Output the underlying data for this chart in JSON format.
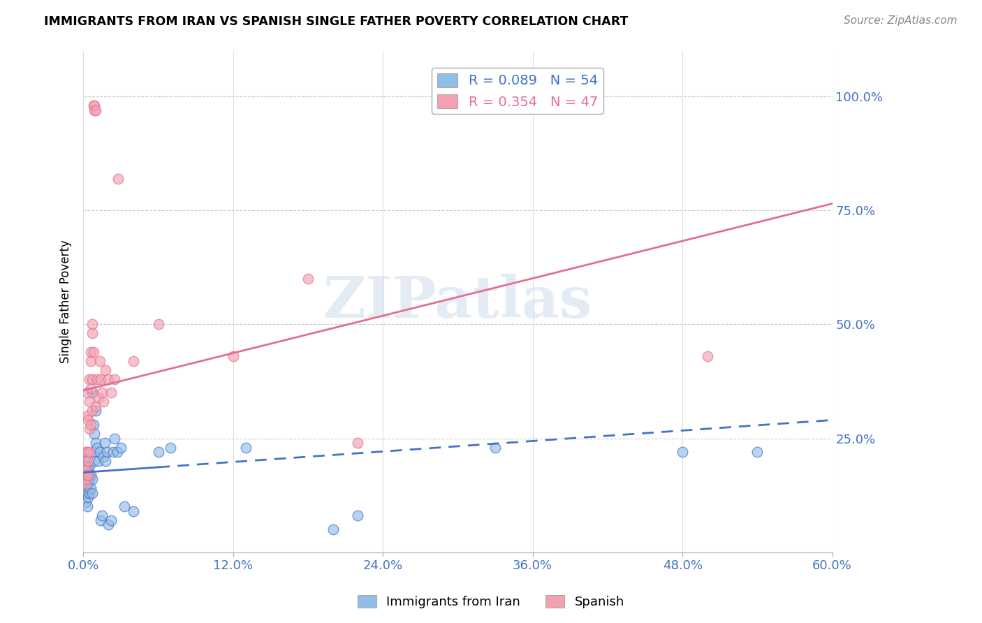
{
  "title": "IMMIGRANTS FROM IRAN VS SPANISH SINGLE FATHER POVERTY CORRELATION CHART",
  "source": "Source: ZipAtlas.com",
  "ylabel": "Single Father Poverty",
  "ytick_labels": [
    "100.0%",
    "75.0%",
    "50.0%",
    "25.0%"
  ],
  "ytick_values": [
    1.0,
    0.75,
    0.5,
    0.25
  ],
  "xtick_values": [
    0.0,
    0.12,
    0.24,
    0.36,
    0.48,
    0.6
  ],
  "xtick_labels": [
    "0.0%",
    "12.0%",
    "24.0%",
    "36.0%",
    "48.0%",
    "60.0%"
  ],
  "xlim": [
    0.0,
    0.6
  ],
  "ylim": [
    0.0,
    1.1
  ],
  "blue_color": "#92bde8",
  "pink_color": "#f4a0b0",
  "trendline_blue_color": "#4472c4",
  "trendline_pink_color": "#e07090",
  "watermark": "ZIPatlas",
  "trendline_blue_x0": 0.0,
  "trendline_blue_y0": 0.175,
  "trendline_blue_x1": 0.6,
  "trendline_blue_y1": 0.29,
  "trendline_blue_solid_end": 0.06,
  "trendline_pink_x0": 0.0,
  "trendline_pink_y0": 0.355,
  "trendline_pink_x1": 0.6,
  "trendline_pink_y1": 0.765,
  "blue_scatter": [
    [
      0.001,
      0.19
    ],
    [
      0.001,
      0.16
    ],
    [
      0.001,
      0.13
    ],
    [
      0.002,
      0.2
    ],
    [
      0.002,
      0.17
    ],
    [
      0.002,
      0.14
    ],
    [
      0.002,
      0.11
    ],
    [
      0.003,
      0.19
    ],
    [
      0.003,
      0.16
    ],
    [
      0.003,
      0.13
    ],
    [
      0.003,
      0.1
    ],
    [
      0.004,
      0.18
    ],
    [
      0.004,
      0.15
    ],
    [
      0.004,
      0.12
    ],
    [
      0.005,
      0.19
    ],
    [
      0.005,
      0.16
    ],
    [
      0.005,
      0.13
    ],
    [
      0.006,
      0.17
    ],
    [
      0.006,
      0.14
    ],
    [
      0.007,
      0.16
    ],
    [
      0.007,
      0.13
    ],
    [
      0.007,
      0.35
    ],
    [
      0.008,
      0.28
    ],
    [
      0.008,
      0.22
    ],
    [
      0.009,
      0.26
    ],
    [
      0.009,
      0.2
    ],
    [
      0.01,
      0.31
    ],
    [
      0.01,
      0.24
    ],
    [
      0.011,
      0.23
    ],
    [
      0.012,
      0.2
    ],
    [
      0.013,
      0.22
    ],
    [
      0.014,
      0.07
    ],
    [
      0.015,
      0.08
    ],
    [
      0.016,
      0.21
    ],
    [
      0.017,
      0.24
    ],
    [
      0.018,
      0.2
    ],
    [
      0.019,
      0.22
    ],
    [
      0.02,
      0.06
    ],
    [
      0.022,
      0.07
    ],
    [
      0.024,
      0.22
    ],
    [
      0.025,
      0.25
    ],
    [
      0.027,
      0.22
    ],
    [
      0.03,
      0.23
    ],
    [
      0.033,
      0.1
    ],
    [
      0.04,
      0.09
    ],
    [
      0.06,
      0.22
    ],
    [
      0.07,
      0.23
    ],
    [
      0.13,
      0.23
    ],
    [
      0.2,
      0.05
    ],
    [
      0.22,
      0.08
    ],
    [
      0.33,
      0.23
    ],
    [
      0.48,
      0.22
    ],
    [
      0.54,
      0.22
    ]
  ],
  "pink_scatter": [
    [
      0.001,
      0.19
    ],
    [
      0.001,
      0.16
    ],
    [
      0.002,
      0.22
    ],
    [
      0.002,
      0.18
    ],
    [
      0.002,
      0.15
    ],
    [
      0.003,
      0.22
    ],
    [
      0.003,
      0.17
    ],
    [
      0.003,
      0.35
    ],
    [
      0.003,
      0.3
    ],
    [
      0.004,
      0.2
    ],
    [
      0.004,
      0.17
    ],
    [
      0.004,
      0.29
    ],
    [
      0.005,
      0.38
    ],
    [
      0.005,
      0.33
    ],
    [
      0.005,
      0.27
    ],
    [
      0.005,
      0.22
    ],
    [
      0.006,
      0.42
    ],
    [
      0.006,
      0.36
    ],
    [
      0.006,
      0.28
    ],
    [
      0.006,
      0.44
    ],
    [
      0.007,
      0.5
    ],
    [
      0.007,
      0.38
    ],
    [
      0.007,
      0.31
    ],
    [
      0.007,
      0.48
    ],
    [
      0.008,
      0.44
    ],
    [
      0.008,
      0.98
    ],
    [
      0.009,
      0.97
    ],
    [
      0.009,
      0.98
    ],
    [
      0.01,
      0.97
    ],
    [
      0.01,
      0.32
    ],
    [
      0.011,
      0.38
    ],
    [
      0.012,
      0.34
    ],
    [
      0.013,
      0.42
    ],
    [
      0.014,
      0.38
    ],
    [
      0.015,
      0.35
    ],
    [
      0.016,
      0.33
    ],
    [
      0.018,
      0.4
    ],
    [
      0.02,
      0.38
    ],
    [
      0.022,
      0.35
    ],
    [
      0.025,
      0.38
    ],
    [
      0.028,
      0.82
    ],
    [
      0.04,
      0.42
    ],
    [
      0.06,
      0.5
    ],
    [
      0.12,
      0.43
    ],
    [
      0.18,
      0.6
    ],
    [
      0.22,
      0.24
    ],
    [
      0.5,
      0.43
    ]
  ]
}
